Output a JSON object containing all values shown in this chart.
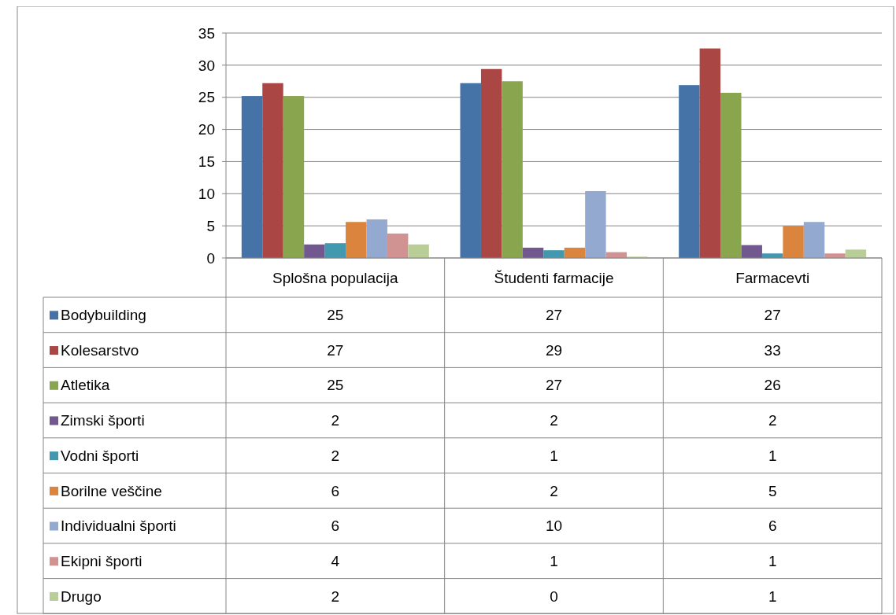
{
  "chart_data": {
    "type": "bar",
    "categories": [
      "Splošna populacija",
      "Študenti farmacije",
      "Farmacevti"
    ],
    "series": [
      {
        "name": "Bodybuilding",
        "color": "#4572a7",
        "values": [
          25.2,
          27.2,
          26.9
        ],
        "value_labels": [
          "25",
          "27",
          "27"
        ]
      },
      {
        "name": "Kolesarstvo",
        "color": "#aa4643",
        "values": [
          27.2,
          29.4,
          32.6
        ],
        "value_labels": [
          "27",
          "29",
          "33"
        ]
      },
      {
        "name": "Atletika",
        "color": "#89a54e",
        "values": [
          25.2,
          27.5,
          25.7
        ],
        "value_labels": [
          "25",
          "27",
          "26"
        ]
      },
      {
        "name": "Zimski športi",
        "color": "#71588f",
        "values": [
          2.1,
          1.6,
          2.0
        ],
        "value_labels": [
          "2",
          "2",
          "2"
        ]
      },
      {
        "name": "Vodni športi",
        "color": "#4198af",
        "values": [
          2.3,
          1.2,
          0.7
        ],
        "value_labels": [
          "2",
          "1",
          "1"
        ]
      },
      {
        "name": "Borilne veščine",
        "color": "#db843d",
        "values": [
          5.6,
          1.6,
          5.0
        ],
        "value_labels": [
          "6",
          "2",
          "5"
        ]
      },
      {
        "name": "Individualni športi",
        "color": "#93a9cf",
        "values": [
          6.0,
          10.4,
          5.6
        ],
        "value_labels": [
          "6",
          "10",
          "6"
        ]
      },
      {
        "name": "Ekipni športi",
        "color": "#d19392",
        "values": [
          3.8,
          0.9,
          0.7
        ],
        "value_labels": [
          "4",
          "1",
          "1"
        ]
      },
      {
        "name": "Drugo",
        "color": "#b9cd96",
        "values": [
          2.1,
          0.2,
          1.3
        ],
        "value_labels": [
          "2",
          "0",
          "1"
        ]
      }
    ],
    "ylim": [
      0,
      35
    ],
    "yticks": [
      0,
      5,
      10,
      15,
      20,
      25,
      30,
      35
    ],
    "grid": "y",
    "legend": "bottom left"
  }
}
